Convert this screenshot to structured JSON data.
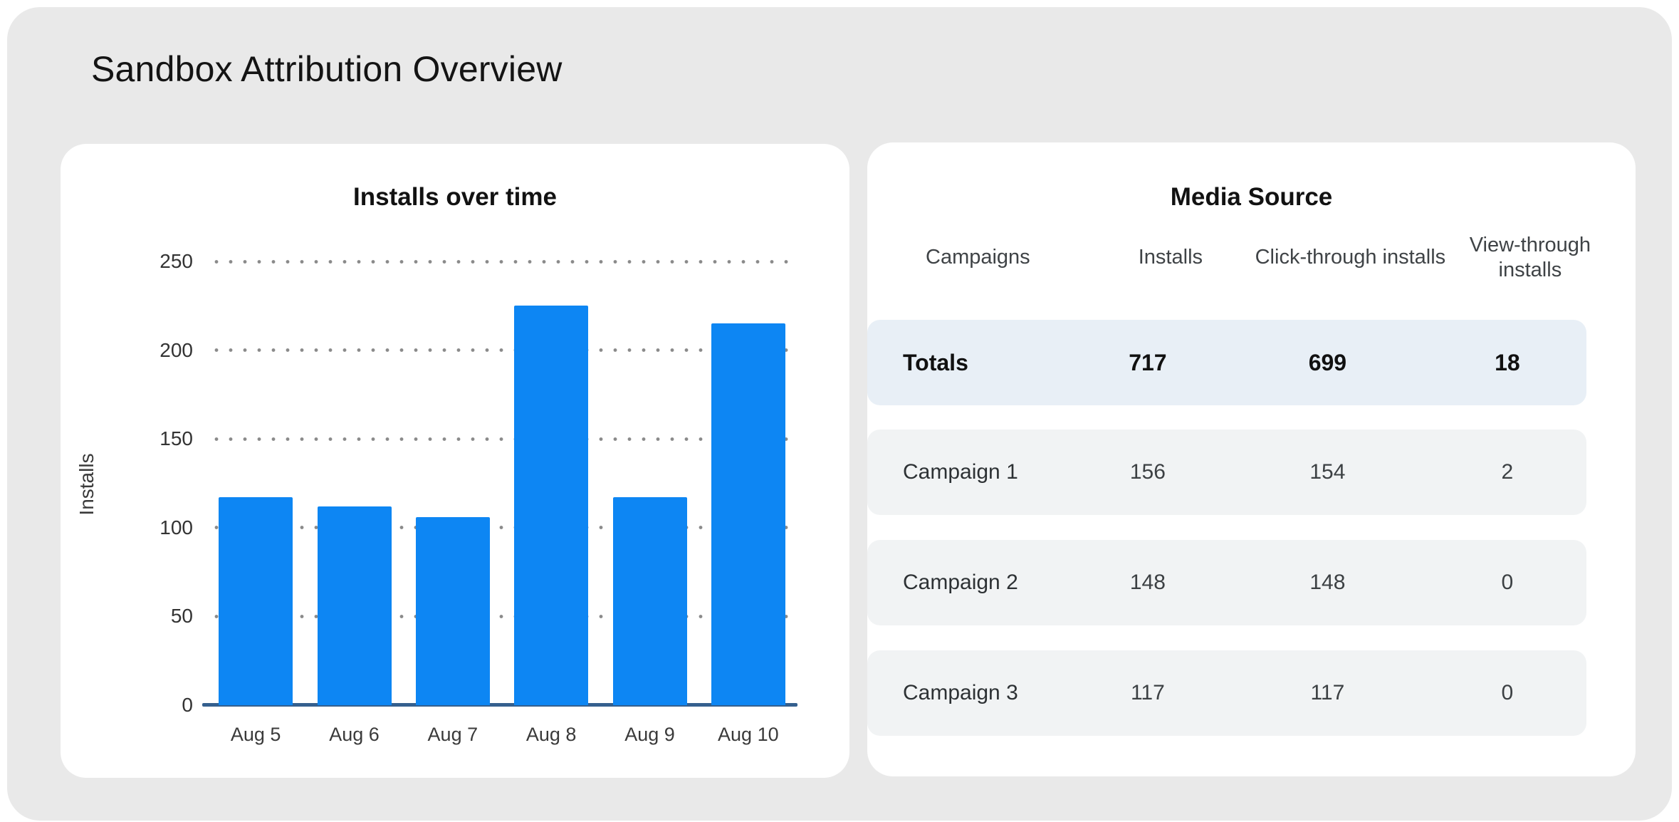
{
  "page_title": "Sandbox Attribution Overview",
  "colors": {
    "canvas_bg": "#e9e9e9",
    "card_bg": "#ffffff",
    "bar": "#0d86f3",
    "axis_line": "#35608e",
    "gridline_dots": "#8a8a8a",
    "totals_row_bg": "#e8eff6",
    "campaign_row_bg": "#f1f3f4"
  },
  "chart_data": {
    "type": "bar",
    "title": "Installs over time",
    "xlabel": "",
    "ylabel": "Installs",
    "categories": [
      "Aug 5",
      "Aug 6",
      "Aug 7",
      "Aug 8",
      "Aug 9",
      "Aug 10"
    ],
    "values": [
      117,
      112,
      106,
      225,
      117,
      215
    ],
    "ylim": [
      0,
      250
    ],
    "yticks": [
      0,
      50,
      100,
      150,
      200,
      250
    ],
    "grid": "horizontal-dotted",
    "legend_position": "none",
    "bar_color": "#0d86f3"
  },
  "media_source": {
    "title": "Media Source",
    "columns": [
      "Campaigns",
      "Installs",
      "Click-through installs",
      "View-through installs"
    ],
    "totals": {
      "campaign": "Totals",
      "installs": "717",
      "click_through": "699",
      "view_through": "18"
    },
    "rows": [
      {
        "campaign": "Campaign 1",
        "installs": "156",
        "click_through": "154",
        "view_through": "2"
      },
      {
        "campaign": "Campaign 2",
        "installs": "148",
        "click_through": "148",
        "view_through": "0"
      },
      {
        "campaign": "Campaign 3",
        "installs": "117",
        "click_through": "117",
        "view_through": "0"
      }
    ]
  }
}
